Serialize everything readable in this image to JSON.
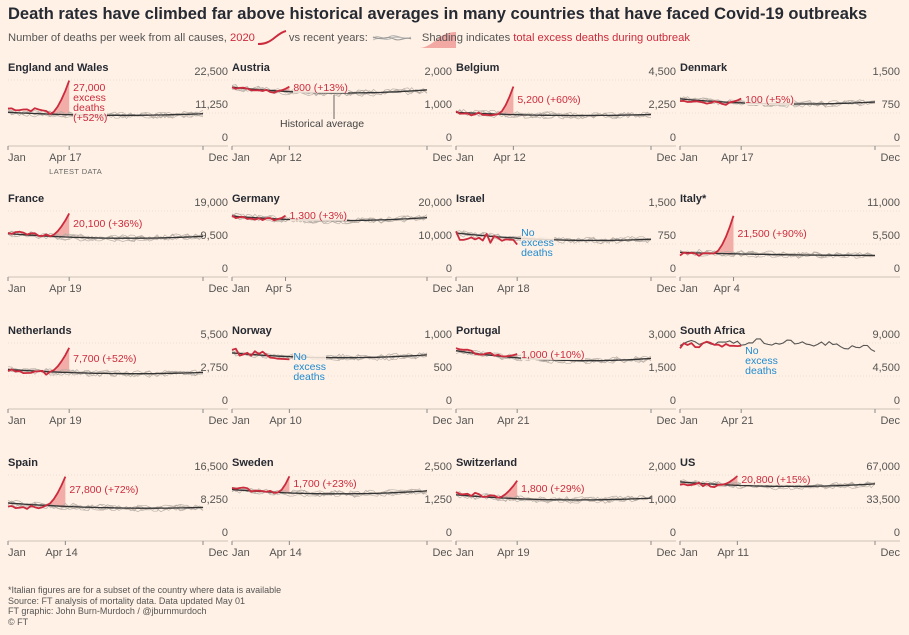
{
  "title": "Death rates have climbed far above historical averages in many countries that have faced Covid-19 outbreaks",
  "legend": {
    "part1": "Number of deaths per week from all causes,",
    "year": "2020",
    "part2": "vs recent years:",
    "shading_word": "Shading",
    "part3": "indicates",
    "part4": "total excess deaths during outbreak"
  },
  "colors": {
    "current": "#cc2b3d",
    "historical": "#999999",
    "average": "#333333",
    "shade": "#f2a9a4",
    "noexcess": "#1f8ad0",
    "background": "#fff1e5"
  },
  "chart_data": [
    {
      "type": "line",
      "name": "England and Wales",
      "yticks": [
        "22,500",
        "11,250",
        "0"
      ],
      "ylim": [
        0,
        22500
      ],
      "x_start": "Jan",
      "x_last": "Apr 17",
      "x_end": "Dec",
      "latest_label": "LATEST DATA",
      "annotation": [
        "27,000",
        "excess",
        "deaths",
        "(+52%)"
      ],
      "excess_deaths": 27000,
      "excess_pct": 52,
      "avg_start": 11500,
      "avg_mid": 9700,
      "avg_end": 11000,
      "current_weeks": 16,
      "outbreak_start_week": 11,
      "peak_value": 22300,
      "start_value": 12800
    },
    {
      "type": "line",
      "name": "Austria",
      "yticks": [
        "2,000",
        "1,000",
        "0"
      ],
      "ylim": [
        0,
        2000
      ],
      "x_start": "Jan",
      "x_last": "Apr 12",
      "x_end": "Dec",
      "annotation": [
        "800 (+13%)"
      ],
      "excess_deaths": 800,
      "excess_pct": 13,
      "avg_start": 1780,
      "avg_mid": 1480,
      "avg_end": 1700,
      "current_weeks": 15,
      "outbreak_start_week": 12,
      "peak_value": 1800,
      "start_value": 1750,
      "historical_label": "Historical average"
    },
    {
      "type": "line",
      "name": "Belgium",
      "yticks": [
        "4,500",
        "2,250",
        "0"
      ],
      "ylim": [
        0,
        4500
      ],
      "x_start": "Jan",
      "x_last": "Apr 12",
      "x_end": "Dec",
      "annotation": [
        "5,200 (+60%)"
      ],
      "excess_deaths": 5200,
      "excess_pct": 60,
      "avg_start": 2300,
      "avg_mid": 1950,
      "avg_end": 2150,
      "current_weeks": 15,
      "outbreak_start_week": 11,
      "peak_value": 4050,
      "start_value": 2250
    },
    {
      "type": "line",
      "name": "Denmark",
      "yticks": [
        "1,500",
        "750",
        "0"
      ],
      "ylim": [
        0,
        1500
      ],
      "x_start": "Jan",
      "x_last": "Apr 17",
      "x_end": "Dec",
      "annotation": [
        "100 (+5%)"
      ],
      "excess_deaths": 100,
      "excess_pct": 5,
      "avg_start": 1070,
      "avg_mid": 880,
      "avg_end": 1000,
      "current_weeks": 16,
      "outbreak_start_week": 13,
      "peak_value": 1080,
      "start_value": 1050
    },
    {
      "type": "line",
      "name": "France",
      "yticks": [
        "19,000",
        "9,500",
        "0"
      ],
      "ylim": [
        0,
        19000
      ],
      "x_start": "Jan",
      "x_last": "Apr 19",
      "x_end": "Dec",
      "annotation": [
        "20,100 (+36%)"
      ],
      "excess_deaths": 20100,
      "excess_pct": 36,
      "avg_start": 12500,
      "avg_mid": 10300,
      "avg_end": 11700,
      "current_weeks": 16,
      "outbreak_start_week": 11,
      "peak_value": 18300,
      "start_value": 12800
    },
    {
      "type": "line",
      "name": "Germany",
      "yticks": [
        "20,000",
        "10,000",
        "0"
      ],
      "ylim": [
        0,
        20000
      ],
      "x_start": "Jan",
      "x_last": "Apr 5",
      "x_end": "Dec",
      "annotation": [
        "1,300 (+3%)"
      ],
      "excess_deaths": 1300,
      "excess_pct": 3,
      "avg_start": 18500,
      "avg_mid": 16000,
      "avg_end": 18000,
      "current_weeks": 14,
      "outbreak_start_week": 12,
      "peak_value": 18600,
      "start_value": 18400
    },
    {
      "type": "line",
      "name": "Israel",
      "yticks": [
        "1,500",
        "750",
        "0"
      ],
      "ylim": [
        0,
        1500
      ],
      "x_start": "Jan",
      "x_last": "Apr 18",
      "x_end": "Dec",
      "annotation": [
        "No",
        "excess",
        "deaths"
      ],
      "no_excess": true,
      "avg_start": 1000,
      "avg_mid": 760,
      "avg_end": 860,
      "current_weeks": 16,
      "outbreak_start_week": 0,
      "peak_value": 1150,
      "start_value": 950
    },
    {
      "type": "line",
      "name": "Italy*",
      "yticks": [
        "11,000",
        "5,500",
        "0"
      ],
      "ylim": [
        0,
        11000
      ],
      "x_start": "Jan",
      "x_last": "Apr 4",
      "x_end": "",
      "annotation": [
        "21,500 (+90%)"
      ],
      "excess_deaths": 21500,
      "excess_pct": 90,
      "avg_start": 4100,
      "avg_mid": 3600,
      "avg_end": 3600,
      "current_weeks": 14,
      "outbreak_start_week": 9,
      "peak_value": 10200,
      "start_value": 3800,
      "truncated": true
    },
    {
      "type": "line",
      "name": "Netherlands",
      "yticks": [
        "5,500",
        "2,750",
        "0"
      ],
      "ylim": [
        0,
        5500
      ],
      "x_start": "Jan",
      "x_last": "Apr 19",
      "x_end": "Dec",
      "annotation": [
        "7,700 (+52%)"
      ],
      "excess_deaths": 7700,
      "excess_pct": 52,
      "avg_start": 3300,
      "avg_mid": 2750,
      "avg_end": 3050,
      "current_weeks": 16,
      "outbreak_start_week": 11,
      "peak_value": 5100,
      "start_value": 3200
    },
    {
      "type": "line",
      "name": "Norway",
      "yticks": [
        "1,000",
        "500",
        "0"
      ],
      "ylim": [
        0,
        1000
      ],
      "x_start": "Jan",
      "x_last": "Apr 10",
      "x_end": "Dec",
      "annotation": [
        "No",
        "excess",
        "deaths"
      ],
      "no_excess": true,
      "avg_start": 850,
      "avg_mid": 720,
      "avg_end": 820,
      "current_weeks": 15,
      "outbreak_start_week": 0,
      "peak_value": 890,
      "start_value": 880
    },
    {
      "type": "line",
      "name": "Portugal",
      "yticks": [
        "3,000",
        "1,500",
        "0"
      ],
      "ylim": [
        0,
        3000
      ],
      "x_start": "Jan",
      "x_last": "Apr 21",
      "x_end": "Dec",
      "annotation": [
        "1,000 (+10%)"
      ],
      "excess_deaths": 1000,
      "excess_pct": 10,
      "avg_start": 2650,
      "avg_mid": 1980,
      "avg_end": 2300,
      "current_weeks": 16,
      "outbreak_start_week": 12,
      "peak_value": 2500,
      "start_value": 2700
    },
    {
      "type": "line",
      "name": "South Africa",
      "yticks": [
        "9,000",
        "4,500",
        "0"
      ],
      "ylim": [
        0,
        9000
      ],
      "x_start": "Jan",
      "x_last": "Apr 21",
      "x_end": "Dec",
      "annotation": [
        "No",
        "excess",
        "deaths"
      ],
      "no_excess": true,
      "avg_start": 8800,
      "avg_mid": 9600,
      "avg_end": 8200,
      "current_weeks": 16,
      "outbreak_start_week": 0,
      "peak_value": 8900,
      "start_value": 8800,
      "single_history": true
    },
    {
      "type": "line",
      "name": "Spain",
      "yticks": [
        "16,500",
        "8,250",
        "0"
      ],
      "ylim": [
        0,
        16500
      ],
      "x_start": "Jan",
      "x_last": "Apr 14",
      "x_end": "Dec",
      "annotation": [
        "27,800 (+72%)"
      ],
      "excess_deaths": 27800,
      "excess_pct": 72,
      "avg_start": 9500,
      "avg_mid": 7700,
      "avg_end": 8400,
      "current_weeks": 15,
      "outbreak_start_week": 10,
      "peak_value": 16100,
      "start_value": 8800
    },
    {
      "type": "line",
      "name": "Sweden",
      "yticks": [
        "2,500",
        "1,250",
        "0"
      ],
      "ylim": [
        0,
        2500
      ],
      "x_start": "Jan",
      "x_last": "Apr 14",
      "x_end": "Dec",
      "annotation": [
        "1,700 (+23%)"
      ],
      "excess_deaths": 1700,
      "excess_pct": 23,
      "avg_start": 1950,
      "avg_mid": 1650,
      "avg_end": 1900,
      "current_weeks": 15,
      "outbreak_start_week": 12,
      "peak_value": 2450,
      "start_value": 2000
    },
    {
      "type": "line",
      "name": "Switzerland",
      "yticks": [
        "2,000",
        "1,000",
        "0"
      ],
      "ylim": [
        0,
        2000
      ],
      "x_start": "Jan",
      "x_last": "Apr 19",
      "x_end": "Dec",
      "annotation": [
        "1,800 (+29%)"
      ],
      "excess_deaths": 1800,
      "excess_pct": 29,
      "avg_start": 1400,
      "avg_mid": 1150,
      "avg_end": 1300,
      "current_weeks": 16,
      "outbreak_start_week": 11,
      "peak_value": 1830,
      "start_value": 1450
    },
    {
      "type": "line",
      "name": "US",
      "yticks": [
        "67,000",
        "33,500",
        "0"
      ],
      "ylim": [
        0,
        67000
      ],
      "x_start": "Jan",
      "x_last": "Apr 11",
      "x_end": "Dec",
      "annotation": [
        "20,800 (+15%)"
      ],
      "excess_deaths": 20800,
      "excess_pct": 15,
      "avg_start": 60000,
      "avg_mid": 52000,
      "avg_end": 58000,
      "current_weeks": 15,
      "outbreak_start_week": 11,
      "peak_value": 66000,
      "start_value": 59000
    }
  ],
  "footer": [
    "*Italian figures are for a subset of the country where data is available",
    "Source: FT analysis of mortality data. Data updated May 01",
    "FT graphic: John Burn-Murdoch / @jburnmurdoch",
    "© FT"
  ]
}
